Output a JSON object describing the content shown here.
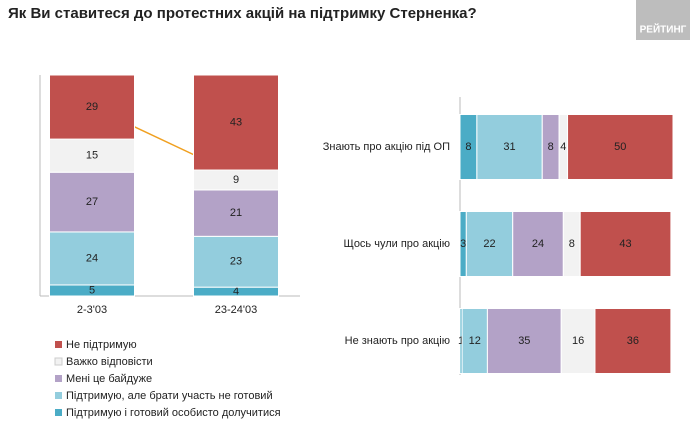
{
  "title": "Як Ви ставитеся до протестних акцій на підтримку Стерненка?",
  "logo": "РЕЙТИНГ",
  "chart_data": [
    {
      "type": "stacked-bar",
      "categories": [
        "2-3'03",
        "23-24'03"
      ],
      "ylim": [
        0,
        100
      ],
      "series": [
        {
          "name": "Не підтримую",
          "color": "#c0504d",
          "values": [
            29,
            43
          ]
        },
        {
          "name": "Важко відповісти",
          "color": "#f2f2f2",
          "values": [
            15,
            9
          ]
        },
        {
          "name": "Мені це байдуже",
          "color": "#b3a2c7",
          "values": [
            27,
            21
          ]
        },
        {
          "name": "Підтримую, але брати участь не готовий",
          "color": "#93cddd",
          "values": [
            24,
            23
          ]
        },
        {
          "name": "Підтримую і готовий особисто долучитися",
          "color": "#4bacc6",
          "values": [
            5,
            4
          ]
        }
      ]
    },
    {
      "type": "stacked-hbar",
      "categories": [
        "Знають про акцію під ОП",
        "Щось чули про акцію",
        "Не знають про акцію"
      ],
      "xlim": [
        0,
        101
      ],
      "series": [
        {
          "color": "#c0504d",
          "values": [
            50,
            43,
            36
          ]
        },
        {
          "color": "#f2f2f2",
          "values": [
            4,
            8,
            16
          ]
        },
        {
          "color": "#b3a2c7",
          "values": [
            8,
            24,
            35
          ]
        },
        {
          "color": "#93cddd",
          "values": [
            31,
            22,
            12
          ]
        },
        {
          "color": "#4bacc6",
          "values": [
            8,
            3,
            1
          ]
        }
      ]
    }
  ]
}
